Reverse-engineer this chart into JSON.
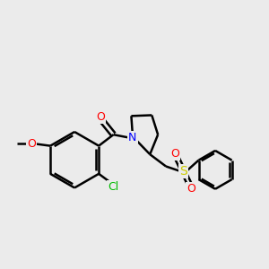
{
  "background_color": "#ebebeb",
  "bond_color": "#000000",
  "bond_width": 1.8,
  "atom_colors": {
    "O": "#ff0000",
    "N": "#0000ff",
    "S": "#cccc00",
    "Cl": "#00bb00",
    "C": "#000000"
  },
  "xlim": [
    0,
    10
  ],
  "ylim": [
    0,
    10
  ]
}
